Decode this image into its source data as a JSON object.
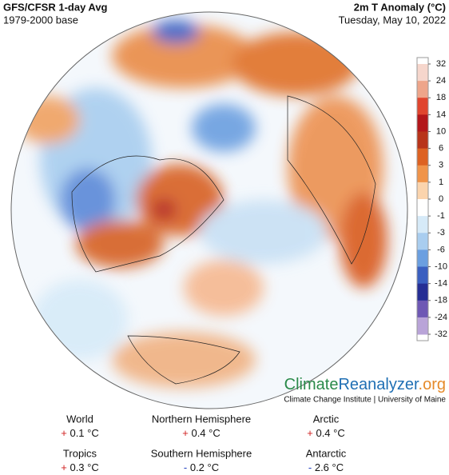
{
  "header": {
    "title": "GFS/CFSR 1-day Avg",
    "subtitle": "1979-2000 base",
    "variable": "2m T Anomaly (°C)",
    "date": "Tuesday, May 10, 2022"
  },
  "colorbar": {
    "ticks": [
      32,
      24,
      18,
      14,
      10,
      6,
      3,
      1,
      0,
      -1,
      -3,
      -6,
      -10,
      -14,
      -18,
      -24,
      -32
    ],
    "colors": [
      "#f6d6cc",
      "#eea58a",
      "#e0452e",
      "#b3161a",
      "#b8341a",
      "#dd6222",
      "#f0944a",
      "#fbd4ad",
      "#ffffff",
      "#d6eaf8",
      "#a9cdef",
      "#6b9fe0",
      "#3a5fc0",
      "#252e94",
      "#6e58b4",
      "#b9a4d8"
    ]
  },
  "logo": {
    "name_a": "Climate",
    "name_b": "Reanalyzer",
    "name_c": ".org",
    "credit": "Climate Change Institute | University of Maine"
  },
  "stats": [
    {
      "label": "World",
      "sign": "+",
      "value": "0.1 °C"
    },
    {
      "label": "Northern Hemisphere",
      "sign": "+",
      "value": "0.4 °C"
    },
    {
      "label": "Arctic",
      "sign": "+",
      "value": "0.4 °C"
    },
    {
      "label": "Tropics",
      "sign": "+",
      "value": "0.3 °C"
    },
    {
      "label": "Southern Hemisphere",
      "sign": "-",
      "value": "0.2 °C"
    },
    {
      "label": "Antarctic",
      "sign": "-",
      "value": "2.6 °C"
    }
  ]
}
